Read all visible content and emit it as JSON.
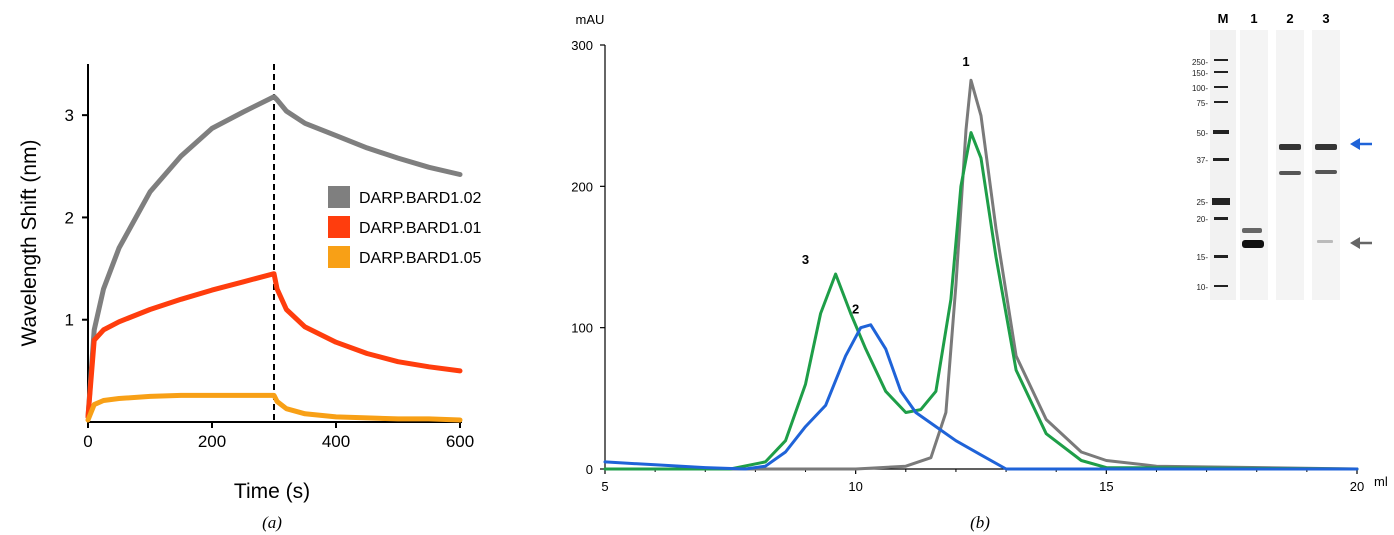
{
  "chart_data": [
    {
      "panel": "(a)",
      "type": "line",
      "xlabel": "Time (s)",
      "ylabel": "Wavelength Shift (nm)",
      "xlim": [
        0,
        600
      ],
      "ylim": [
        0,
        3.5
      ],
      "xticks": [
        "0",
        "200",
        "400",
        "600"
      ],
      "yticks": [
        "1",
        "2",
        "3"
      ],
      "grid": false,
      "legend_position": "right",
      "vline_x": 300,
      "series": [
        {
          "name": "DARP.BARD1.02",
          "color": "#7f7f7f",
          "x": [
            0,
            10,
            25,
            50,
            100,
            150,
            200,
            250,
            300,
            305,
            320,
            350,
            400,
            450,
            500,
            550,
            600
          ],
          "y": [
            0.05,
            0.9,
            1.3,
            1.7,
            2.25,
            2.6,
            2.87,
            3.03,
            3.18,
            3.15,
            3.04,
            2.92,
            2.8,
            2.68,
            2.58,
            2.49,
            2.42
          ]
        },
        {
          "name": "DARP.BARD1.01",
          "color": "#ff3d0d",
          "x": [
            0,
            10,
            25,
            50,
            100,
            150,
            200,
            250,
            300,
            305,
            320,
            350,
            400,
            450,
            500,
            550,
            600
          ],
          "y": [
            0.05,
            0.8,
            0.9,
            0.98,
            1.1,
            1.2,
            1.29,
            1.37,
            1.45,
            1.3,
            1.1,
            0.93,
            0.78,
            0.67,
            0.59,
            0.54,
            0.5
          ]
        },
        {
          "name": "DARP.BARD1.05",
          "color": "#f8a016",
          "x": [
            0,
            10,
            25,
            50,
            100,
            150,
            200,
            250,
            300,
            305,
            320,
            350,
            400,
            450,
            500,
            550,
            600
          ],
          "y": [
            0.02,
            0.17,
            0.21,
            0.23,
            0.25,
            0.26,
            0.26,
            0.26,
            0.26,
            0.2,
            0.13,
            0.08,
            0.05,
            0.04,
            0.03,
            0.03,
            0.02
          ]
        }
      ]
    },
    {
      "panel": "(b)",
      "type": "line",
      "ylabel": "mAU",
      "xlabel": "ml",
      "xlim": [
        5,
        20
      ],
      "ylim": [
        0,
        300
      ],
      "xticks": [
        "5",
        "10",
        "15",
        "20"
      ],
      "yticks": [
        "0",
        "100",
        "200",
        "300"
      ],
      "grid": false,
      "series": [
        {
          "color": "#7a7a7a",
          "x": [
            5,
            10,
            11,
            11.5,
            11.8,
            12.0,
            12.2,
            12.3,
            12.5,
            12.8,
            13.2,
            13.8,
            14.5,
            15,
            16,
            20
          ],
          "y": [
            0,
            0,
            2,
            8,
            40,
            130,
            240,
            275,
            250,
            170,
            80,
            35,
            12,
            6,
            2,
            0
          ]
        },
        {
          "color": "#1e9e48",
          "x": [
            5,
            7.5,
            8.2,
            8.6,
            9.0,
            9.3,
            9.6,
            9.9,
            10.2,
            10.6,
            11.0,
            11.3,
            11.6,
            11.9,
            12.1,
            12.3,
            12.5,
            12.8,
            13.2,
            13.8,
            14.5,
            15,
            20
          ],
          "y": [
            0,
            0,
            5,
            20,
            60,
            110,
            138,
            110,
            85,
            55,
            40,
            42,
            55,
            120,
            200,
            238,
            220,
            150,
            70,
            25,
            6,
            1,
            0
          ]
        },
        {
          "color": "#1f63d8",
          "x": [
            5,
            6,
            7,
            7.8,
            8.2,
            8.6,
            9.0,
            9.4,
            9.8,
            10.1,
            10.3,
            10.6,
            10.9,
            11.2,
            11.6,
            12.0,
            12.5,
            13.0,
            20
          ],
          "y": [
            5,
            3,
            1,
            0,
            2,
            12,
            30,
            45,
            80,
            100,
            102,
            85,
            55,
            40,
            30,
            20,
            10,
            0,
            0
          ]
        }
      ],
      "peak_labels": [
        {
          "text": "1",
          "x": 12.2,
          "y": 285
        },
        {
          "text": "2",
          "x": 10.0,
          "y": 110
        },
        {
          "text": "3",
          "x": 9.0,
          "y": 145
        }
      ],
      "inset_gel": {
        "lanes": [
          "M",
          "1",
          "2",
          "3"
        ],
        "mw_markers": [
          "250-",
          "150-",
          "100-",
          "75-",
          "50-",
          "37-",
          "25-",
          "20-",
          "15-",
          "10-"
        ],
        "arrows": [
          {
            "color": "#1f63d8",
            "lane_band": "upper"
          },
          {
            "color": "#666666",
            "lane_band": "lower"
          }
        ]
      }
    }
  ],
  "panel_labels": {
    "a": "(a)",
    "b": "(b)"
  }
}
